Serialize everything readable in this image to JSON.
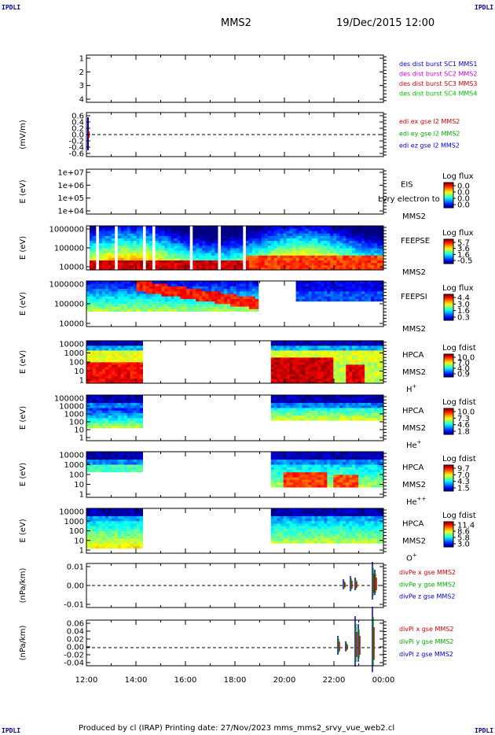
{
  "page": {
    "corner_label": "IPDLI",
    "spacecraft": "MMS2",
    "date_time": "19/Dec/2015 12:00",
    "footer": "Produced by cl (IRAP)   Printing date: 27/Nov/2023   mms_mms2_srvy_vue_web2.cl"
  },
  "chart_data": [
    {
      "type": "line",
      "id": "burst",
      "yticks": [
        "1",
        "2",
        "3",
        "4"
      ],
      "legend": [
        {
          "text": "des dist burst SC1 MMS1",
          "color": "#0000cc"
        },
        {
          "text": "des dist burst SC2 MMS2",
          "color": "#cc00cc"
        },
        {
          "text": "des dist burst SC3 MMS3",
          "color": "#cc0000"
        },
        {
          "text": "des dist burst SC4 MMS4",
          "color": "#00bb00"
        }
      ]
    },
    {
      "type": "line",
      "id": "edi",
      "ylabel": "(mV/m)",
      "yticks": [
        "0.6",
        "0.4",
        "0.2",
        "0.0",
        "-0.2",
        "-0.4",
        "-0.6"
      ],
      "legend": [
        {
          "text": "edi ex gse l2 MMS2",
          "color": "#cc0000"
        },
        {
          "text": "edi ey gse l2 MMS2",
          "color": "#00aa00"
        },
        {
          "text": "edi ez gse l2 MMS2",
          "color": "#0000cc"
        }
      ]
    },
    {
      "type": "heatmap",
      "id": "eis",
      "ylabel": "E (eV)",
      "yticks": [
        "1e+07",
        "1e+06",
        "1e+05",
        "1e+04"
      ],
      "instrument": [
        "EIS",
        "MMS2"
      ],
      "overlay": "Lvry electron to",
      "cbar_title": "Log flux",
      "cbar_ticks": [
        "0.0",
        "0.0",
        "0.0",
        "0.0"
      ]
    },
    {
      "type": "heatmap",
      "id": "feepse",
      "ylabel": "E (eV)",
      "yticks": [
        "1000000",
        "100000",
        "10000"
      ],
      "instrument": [
        "FEEPSE",
        "MMS2"
      ],
      "cbar_title": "Log flux",
      "cbar_ticks": [
        "5.7",
        "3.6",
        "1.6",
        "-0.5"
      ]
    },
    {
      "type": "heatmap",
      "id": "feepsi",
      "ylabel": "E (eV)",
      "yticks": [
        "1000000",
        "100000",
        "10000"
      ],
      "instrument": [
        "FEEPSI",
        "MMS2"
      ],
      "cbar_title": "Log flux",
      "cbar_ticks": [
        "4.4",
        "3.0",
        "1.6",
        "0.3"
      ]
    },
    {
      "type": "heatmap",
      "id": "hpca_h",
      "ylabel": "E (eV)",
      "yticks": [
        "10000",
        "1000",
        "100",
        "10",
        "1"
      ],
      "instrument": [
        "HPCA",
        "MMS2"
      ],
      "species": "H",
      "charge": "+",
      "cbar_title": "Log fdist",
      "cbar_ticks": [
        "10.0",
        "7.0",
        "4.0",
        "0.9"
      ]
    },
    {
      "type": "heatmap",
      "id": "hpca_he",
      "ylabel": "E (eV)",
      "yticks": [
        "100000",
        "10000",
        "1000",
        "100",
        "10",
        "1"
      ],
      "instrument": [
        "HPCA",
        "MMS2"
      ],
      "species": "He",
      "charge": "+",
      "cbar_title": "Log fdist",
      "cbar_ticks": [
        "10.0",
        "7.3",
        "4.6",
        "1.8"
      ]
    },
    {
      "type": "heatmap",
      "id": "hpca_he2",
      "ylabel": "E (eV)",
      "yticks": [
        "10000",
        "1000",
        "100",
        "10",
        "1"
      ],
      "instrument": [
        "HPCA",
        "MMS2"
      ],
      "species": "He",
      "charge": "++",
      "cbar_title": "Log fdist",
      "cbar_ticks": [
        "9.7",
        "7.0",
        "4.3",
        "1.5"
      ]
    },
    {
      "type": "heatmap",
      "id": "hpca_o",
      "ylabel": "E (eV)",
      "yticks": [
        "10000",
        "1000",
        "100",
        "10",
        "1"
      ],
      "instrument": [
        "HPCA",
        "MMS2"
      ],
      "species": "O",
      "charge": "+",
      "cbar_title": "Log fdist",
      "cbar_ticks": [
        "11.4",
        "8.6",
        "5.8",
        "3.0"
      ]
    },
    {
      "type": "line",
      "id": "divpe",
      "ylabel": "(nPa/km)",
      "yticks": [
        "0.01",
        "0.00",
        "-0.01"
      ],
      "legend": [
        {
          "text": "divPe x gse MMS2",
          "color": "#cc0000"
        },
        {
          "text": "divPe y gse MMS2",
          "color": "#00aa00"
        },
        {
          "text": "divPe z gse MMS2",
          "color": "#0000cc"
        }
      ]
    },
    {
      "type": "line",
      "id": "divpi",
      "ylabel": "(nPa/km)",
      "yticks": [
        "0.06",
        "0.04",
        "0.02",
        "0.00",
        "-0.02",
        "-0.04"
      ],
      "legend": [
        {
          "text": "divPi x gse MMS2",
          "color": "#cc0000"
        },
        {
          "text": "divPi y gse MMS2",
          "color": "#00aa00"
        },
        {
          "text": "divPi z gse MMS2",
          "color": "#0000cc"
        }
      ]
    }
  ],
  "time_axis": {
    "ticks": [
      "12:00",
      "14:00",
      "16:00",
      "18:00",
      "20:00",
      "22:00",
      "00:00"
    ]
  }
}
